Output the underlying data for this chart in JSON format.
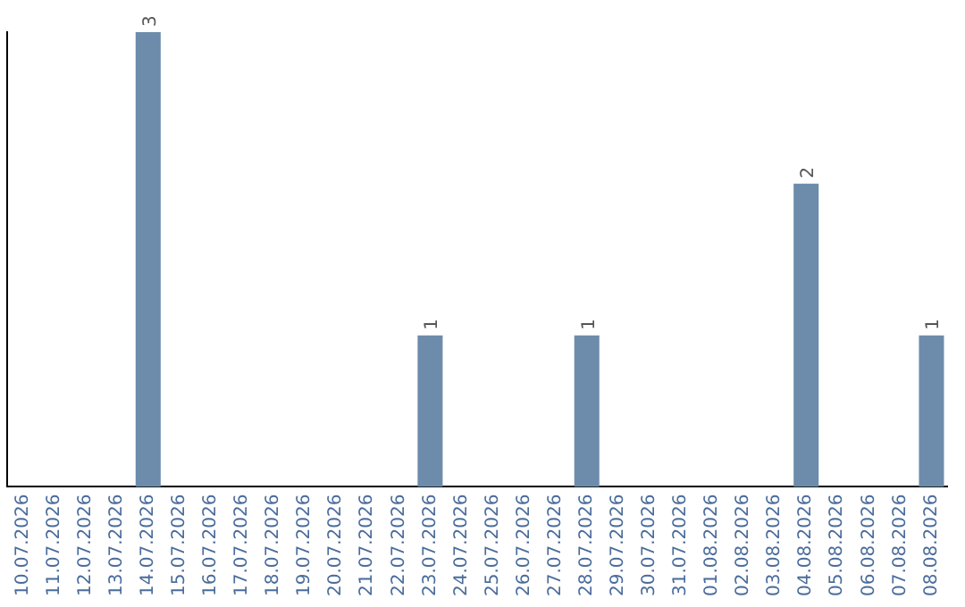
{
  "chart_data": {
    "type": "bar",
    "categories": [
      "10.07.2026",
      "11.07.2026",
      "12.07.2026",
      "13.07.2026",
      "14.07.2026",
      "15.07.2026",
      "16.07.2026",
      "17.07.2026",
      "18.07.2026",
      "19.07.2026",
      "20.07.2026",
      "21.07.2026",
      "22.07.2026",
      "23.07.2026",
      "24.07.2026",
      "25.07.2026",
      "26.07.2026",
      "27.07.2026",
      "28.07.2026",
      "29.07.2026",
      "30.07.2026",
      "31.07.2026",
      "01.08.2026",
      "02.08.2026",
      "03.08.2026",
      "04.08.2026",
      "05.08.2026",
      "06.08.2026",
      "07.08.2026",
      "08.08.2026"
    ],
    "values": [
      0,
      0,
      0,
      0,
      3,
      0,
      0,
      0,
      0,
      0,
      0,
      0,
      0,
      1,
      0,
      0,
      0,
      0,
      1,
      0,
      0,
      0,
      0,
      0,
      0,
      2,
      0,
      0,
      0,
      1
    ],
    "value_labels": [
      null,
      null,
      null,
      null,
      "3",
      null,
      null,
      null,
      null,
      null,
      null,
      null,
      null,
      "1",
      null,
      null,
      null,
      null,
      "1",
      null,
      null,
      null,
      null,
      null,
      null,
      "2",
      null,
      null,
      null,
      "1"
    ],
    "color": "#6d8cab",
    "ylim": [
      0,
      3
    ],
    "tick_labels": "x",
    "grid": false,
    "legend": false
  }
}
